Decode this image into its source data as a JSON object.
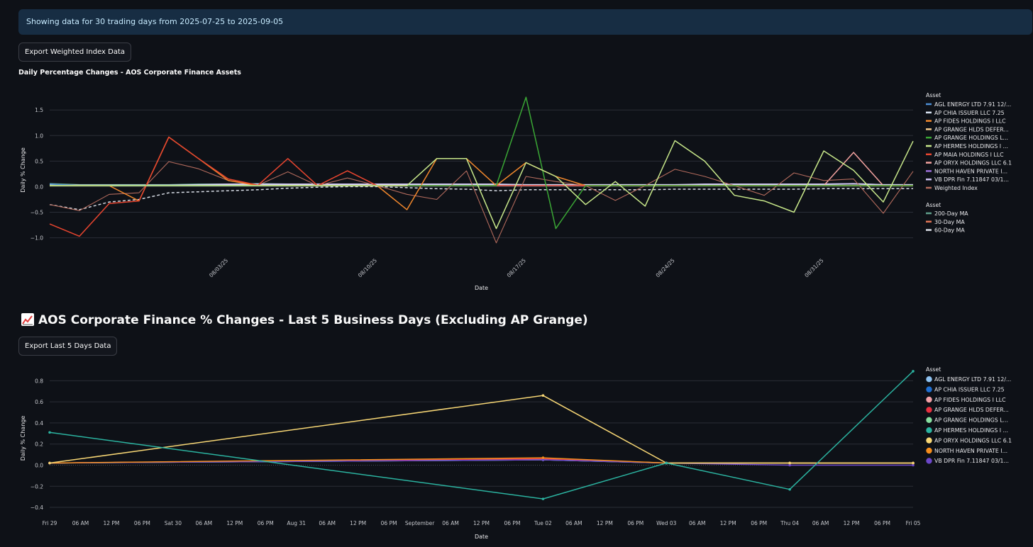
{
  "info_banner": "Showing data for 30 trading days from 2025-07-25 to 2025-09-05",
  "export_weighted_label": "Export Weighted Index Data",
  "export_last5_label": "Export Last 5 Days Data",
  "section_heading": "AOS Corporate Finance % Changes - Last 5 Business Days (Excluding AP Grange)",
  "section_icon": "chart-increasing-icon",
  "chart_data": [
    {
      "type": "line",
      "title": "Daily Percentage Changes - AOS Corporate Finance Assets",
      "xlabel": "Date",
      "ylabel": "Daily % Change",
      "ylim": [
        -1.2,
        1.85
      ],
      "y_ticks": [
        1.5,
        1.0,
        0.5,
        0.0,
        -0.5,
        -1.0
      ],
      "y_tick_labels": [
        "1.5",
        "1.0",
        "0.5",
        "0.0",
        "−0.5",
        "−1.0"
      ],
      "x_tick_labels": [
        "08/03/25",
        "08/10/25",
        "08/17/25",
        "08/24/25",
        "08/31/25"
      ],
      "x_tick_index": [
        6,
        11,
        16,
        21,
        26
      ],
      "n_points": 30,
      "legend_position": "right",
      "legend_title": "Asset",
      "legend_title2": "Asset",
      "series": [
        {
          "name": "AGL ENERGY LTD 7.91 12/...",
          "color": "#4c8ed4",
          "values": [
            0.05,
            0.02,
            0.02,
            0.02,
            0.02,
            0.02,
            0.02,
            0.02,
            0.02,
            0.02,
            0.02,
            0.02,
            0.02,
            0.02,
            0.02,
            0.02,
            0.02,
            0.02,
            0.02,
            0.02,
            0.02,
            0.02,
            0.02,
            0.02,
            0.02,
            0.02,
            0.02,
            0.02,
            0.02,
            0.02
          ]
        },
        {
          "name": "AP CHIA ISSUER LLC 7.25",
          "color": "#dce6f5",
          "values": [
            0.03,
            0.03,
            0.03,
            0.03,
            0.03,
            0.03,
            0.03,
            0.03,
            0.03,
            0.03,
            0.03,
            0.03,
            0.03,
            0.03,
            0.03,
            0.03,
            0.03,
            0.03,
            0.03,
            0.03,
            0.03,
            0.03,
            0.03,
            0.03,
            0.03,
            0.03,
            0.03,
            0.03,
            0.03,
            0.03
          ]
        },
        {
          "name": "AP FIDES HOLDINGS I LLC",
          "color": "#f1872c",
          "values": [
            0.02,
            0.02,
            0.02,
            -0.28,
            0.97,
            0.55,
            0.12,
            0.02,
            0.02,
            0.02,
            0.02,
            0.02,
            -0.45,
            0.55,
            0.55,
            0.02,
            0.47,
            0.2,
            0.02,
            0.02,
            0.02,
            0.02,
            0.02,
            0.02,
            0.02,
            0.02,
            0.02,
            0.02,
            0.02,
            0.02
          ]
        },
        {
          "name": "AP GRANGE HLDS DEFER...",
          "color": "#f6cc8f",
          "values": [
            0.02,
            0.02,
            0.02,
            0.02,
            0.02,
            0.02,
            0.02,
            0.02,
            0.02,
            0.02,
            0.02,
            0.02,
            0.02,
            0.02,
            0.02,
            0.02,
            0.02,
            0.02,
            0.02,
            0.02,
            0.02,
            0.02,
            0.02,
            0.02,
            0.02,
            0.02,
            0.02,
            0.02,
            0.02,
            0.02
          ]
        },
        {
          "name": "AP GRANGE HOLDINGS L...",
          "color": "#3aa635",
          "values": [
            0.02,
            0.02,
            0.02,
            0.02,
            0.02,
            0.02,
            0.02,
            0.02,
            0.02,
            0.02,
            0.02,
            0.02,
            0.02,
            0.02,
            0.02,
            0.02,
            1.75,
            -0.82,
            0.02,
            0.02,
            0.02,
            0.02,
            0.02,
            0.02,
            0.02,
            0.02,
            0.02,
            0.02,
            0.02,
            0.02
          ]
        },
        {
          "name": "AP HERMES HOLDINGS I ...",
          "color": "#c8e88a",
          "values": [
            0.02,
            0.02,
            0.02,
            0.02,
            0.02,
            0.02,
            0.02,
            0.02,
            0.02,
            0.02,
            0.02,
            0.02,
            0.02,
            0.55,
            0.55,
            -0.82,
            0.47,
            0.2,
            -0.35,
            0.1,
            -0.38,
            0.9,
            0.5,
            -0.17,
            -0.28,
            -0.5,
            0.7,
            0.32,
            -0.3,
            0.89
          ]
        },
        {
          "name": "AP MAIA HOLDINGS I LLC",
          "color": "#e8452f",
          "values": [
            -0.73,
            -0.97,
            -0.33,
            -0.28,
            0.97,
            0.55,
            0.15,
            0.03,
            0.55,
            0.02,
            0.31,
            0.02,
            0.02,
            0.02,
            0.02,
            0.02,
            0.02,
            0.02,
            0.02,
            0.02,
            0.02,
            0.02,
            0.02,
            0.02,
            0.02,
            0.02,
            0.02,
            0.02,
            0.02,
            0.02
          ]
        },
        {
          "name": "AP ORYX HOLDINGS LLC 6.1",
          "color": "#f4a3a0",
          "values": [
            0.02,
            0.02,
            0.02,
            0.02,
            0.02,
            0.02,
            0.02,
            0.02,
            0.02,
            0.02,
            0.02,
            0.02,
            0.02,
            0.02,
            0.02,
            0.02,
            0.02,
            0.02,
            0.02,
            0.02,
            0.02,
            0.02,
            0.02,
            0.02,
            0.02,
            0.02,
            0.02,
            0.67,
            0.02,
            0.02
          ]
        },
        {
          "name": "NORTH HAVEN PRIVATE I...",
          "color": "#9c6fd9",
          "values": [
            0.02,
            0.02,
            0.02,
            0.02,
            0.02,
            0.02,
            0.02,
            0.02,
            0.02,
            0.02,
            0.02,
            0.02,
            0.02,
            0.02,
            0.02,
            0.02,
            0.02,
            0.02,
            0.02,
            0.02,
            0.02,
            0.02,
            0.02,
            0.02,
            0.02,
            0.02,
            0.02,
            0.02,
            0.02,
            0.02
          ]
        },
        {
          "name": "VB DPR Fin 7.11847 03/1...",
          "color": "#cfc2f2",
          "values": [
            0.04,
            0.03,
            0.03,
            0.03,
            0.03,
            0.04,
            0.05,
            0.05,
            0.05,
            0.05,
            0.05,
            0.05,
            0.05,
            0.05,
            0.05,
            0.05,
            0.04,
            0.04,
            0.04,
            0.04,
            0.04,
            0.04,
            0.05,
            0.05,
            0.05,
            0.05,
            0.05,
            0.06,
            0.04,
            0.04
          ]
        },
        {
          "name": "Weighted Index",
          "color": "#b26a5c",
          "values": [
            -0.35,
            -0.47,
            -0.15,
            -0.12,
            0.49,
            0.35,
            0.12,
            0.03,
            0.29,
            0.02,
            0.17,
            0.02,
            -0.15,
            -0.25,
            0.31,
            -1.1,
            0.2,
            0.1,
            0.02,
            -0.27,
            0.02,
            0.34,
            0.2,
            0.02,
            -0.17,
            0.27,
            0.12,
            0.15,
            -0.52,
            0.3
          ]
        },
        {
          "name": "200-Day MA",
          "color": "#5f9e8a",
          "values": [
            0.06,
            0.04,
            0.04,
            0.04,
            0.04,
            0.05,
            0.05,
            0.06,
            0.05,
            0.05,
            0.05,
            0.05,
            0.05,
            0.05,
            0.05,
            0.04,
            0.04,
            0.04,
            0.04,
            0.04,
            0.04,
            0.04,
            0.04,
            0.04,
            0.05,
            0.05,
            0.05,
            0.06,
            0.04,
            0.04
          ]
        },
        {
          "name": "30-Day MA",
          "color": "#e07556",
          "values": [
            0.03,
            0.03,
            0.03,
            0.03,
            0.03,
            0.04,
            0.04,
            0.04,
            0.04,
            0.03,
            0.03,
            0.03,
            0.03,
            0.03,
            0.03,
            0.03,
            0.03,
            0.03,
            0.03,
            0.03,
            0.03,
            0.03,
            0.03,
            0.03,
            0.03,
            0.03,
            0.03,
            0.03,
            0.03,
            0.03
          ]
        },
        {
          "name": "60-Day MA",
          "color": "#d8dde6",
          "dashed": true,
          "values": [
            -0.35,
            -0.45,
            -0.3,
            -0.25,
            -0.12,
            -0.1,
            -0.08,
            -0.06,
            -0.03,
            -0.01,
            0.0,
            0.0,
            -0.02,
            -0.04,
            -0.05,
            -0.08,
            -0.06,
            -0.06,
            -0.06,
            -0.06,
            -0.06,
            -0.05,
            -0.05,
            -0.05,
            -0.05,
            -0.05,
            -0.04,
            -0.04,
            -0.04,
            -0.04
          ]
        }
      ],
      "legend_group1": [
        "AGL ENERGY LTD 7.91 12/...",
        "AP CHIA ISSUER LLC 7.25",
        "AP FIDES HOLDINGS I LLC",
        "AP GRANGE HLDS DEFER...",
        "AP GRANGE HOLDINGS L...",
        "AP HERMES HOLDINGS I ...",
        "AP MAIA HOLDINGS I LLC",
        "AP ORYX HOLDINGS LLC 6.1",
        "NORTH HAVEN PRIVATE I...",
        "VB DPR Fin 7.11847 03/1...",
        "Weighted Index"
      ],
      "legend_group2": [
        "200-Day MA",
        "30-Day MA",
        "60-Day MA"
      ]
    },
    {
      "type": "line",
      "title": "",
      "xlabel": "Date",
      "ylabel": "Daily % Change",
      "ylim": [
        -0.44,
        0.95
      ],
      "y_ticks": [
        0.8,
        0.6,
        0.4,
        0.2,
        0.0,
        -0.2,
        -0.4
      ],
      "y_tick_labels": [
        "0.8",
        "0.6",
        "0.4",
        "0.2",
        "0.0",
        "−0.2",
        "−0.4"
      ],
      "x_range_hours": [
        0,
        168
      ],
      "x_ticks_hours": [
        0,
        6,
        12,
        18,
        24,
        30,
        36,
        42,
        48,
        54,
        60,
        66,
        72,
        78,
        84,
        90,
        96,
        102,
        108,
        114,
        120,
        126,
        132,
        138,
        144,
        150,
        156,
        162,
        168
      ],
      "x_tick_labels": [
        "Fri 29",
        "06 AM",
        "12 PM",
        "06 PM",
        "Sat 30",
        "06 AM",
        "12 PM",
        "06 PM",
        "Aug 31",
        "06 AM",
        "12 PM",
        "06 PM",
        "September",
        "06 AM",
        "12 PM",
        "06 PM",
        "Tue 02",
        "06 AM",
        "12 PM",
        "06 PM",
        "Wed 03",
        "06 AM",
        "12 PM",
        "06 PM",
        "Thu 04",
        "06 AM",
        "12 PM",
        "06 PM",
        "Fri 05"
      ],
      "x_hours": [
        0,
        96,
        120,
        144,
        168
      ],
      "legend_position": "right",
      "legend_title": "Asset",
      "series": [
        {
          "name": "AGL ENERGY LTD 7.91 12/...",
          "color": "#8fc3f2",
          "values": [
            0.02,
            0.06,
            0.02,
            0.02,
            0.02
          ]
        },
        {
          "name": "AP CHIA ISSUER LLC 7.25",
          "color": "#1f6fd1",
          "values": [
            0.02,
            0.05,
            0.02,
            0.02,
            0.02
          ]
        },
        {
          "name": "AP FIDES HOLDINGS I LLC",
          "color": "#f3a0a6",
          "values": [
            0.02,
            0.06,
            0.02,
            0.02,
            0.02
          ]
        },
        {
          "name": "AP GRANGE HLDS DEFER...",
          "color": "#e8303f",
          "values": [
            0.02,
            0.06,
            0.02,
            0.02,
            0.02
          ]
        },
        {
          "name": "AP GRANGE HOLDINGS L...",
          "color": "#87e0a0",
          "values": [
            0.02,
            0.05,
            0.02,
            0.02,
            0.02
          ]
        },
        {
          "name": "AP HERMES HOLDINGS I ...",
          "color": "#2bb3a0",
          "values": [
            0.31,
            -0.32,
            0.02,
            -0.23,
            0.89
          ]
        },
        {
          "name": "AP ORYX HOLDINGS LLC 6.1",
          "color": "#f8d775",
          "values": [
            0.02,
            0.66,
            0.02,
            0.02,
            0.02
          ]
        },
        {
          "name": "NORTH HAVEN PRIVATE I...",
          "color": "#f58d1c",
          "values": [
            0.02,
            0.07,
            0.02,
            0.02,
            0.02
          ]
        },
        {
          "name": "VB DPR Fin 7.11847 03/1...",
          "color": "#6c47c9",
          "values": [
            0.02,
            0.05,
            0.02,
            0.0,
            0.0
          ]
        }
      ]
    }
  ]
}
